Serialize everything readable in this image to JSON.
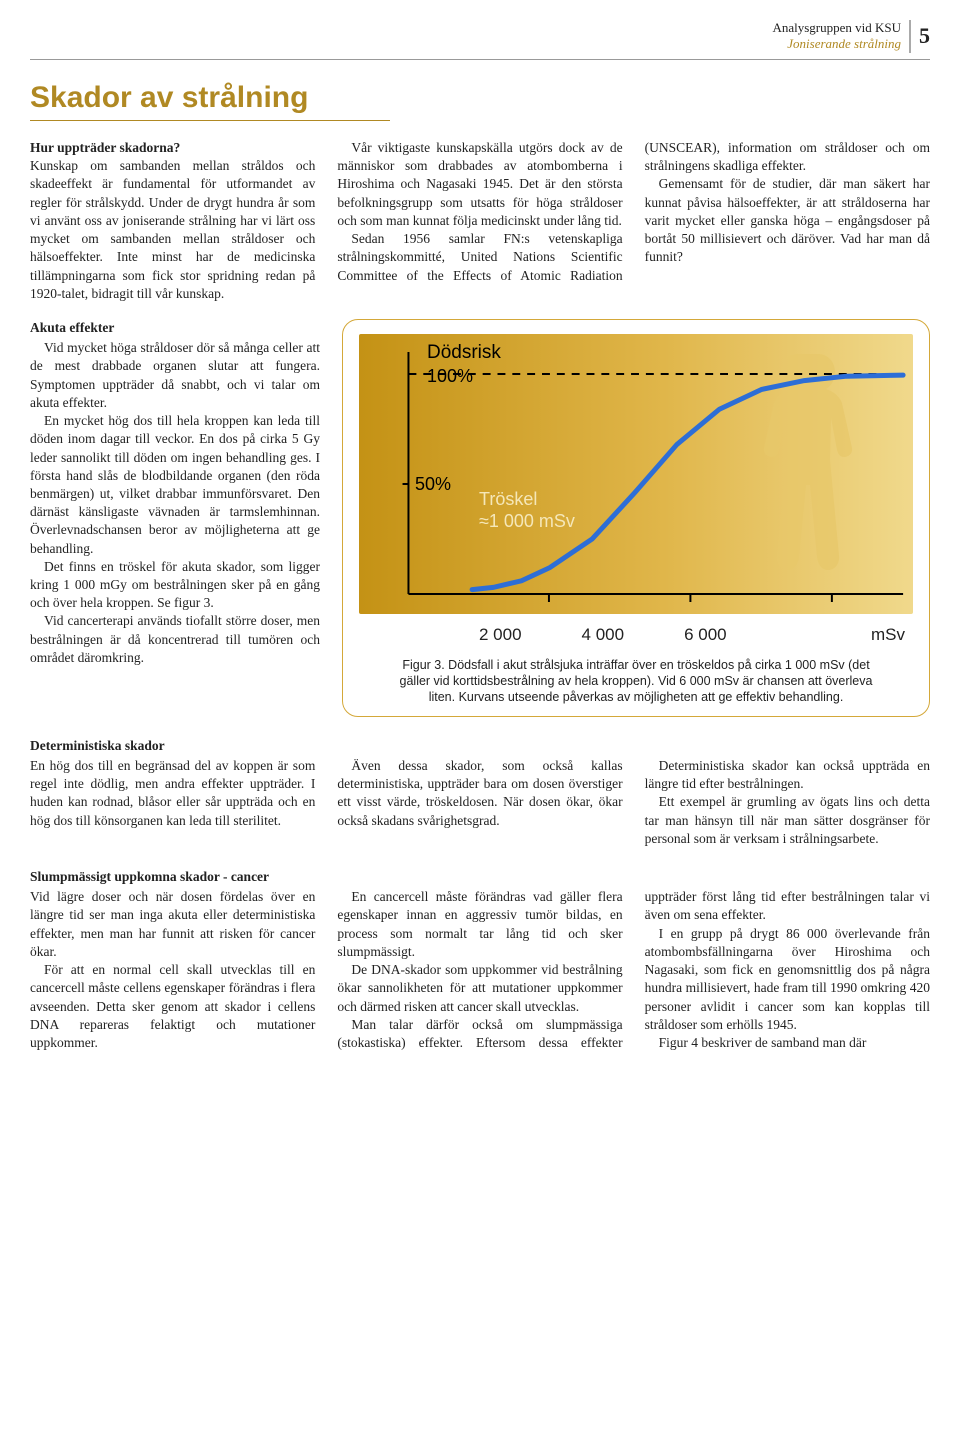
{
  "header": {
    "org": "Analysgruppen vid KSU",
    "topic": "Joniserande strålning",
    "page_number": "5"
  },
  "title": "Skador av strålning",
  "intro": {
    "lead_heading": "Hur uppträder skadorna?",
    "p1": "Kunskap om sambanden mellan stråldos och skadeeffekt är fundamental för utformandet av regler för strålskydd. Under de drygt hundra år som vi använt oss av joniserande strålning har vi lärt oss mycket om sambanden mellan stråldoser och hälsoeffekter. Inte minst har de medicinska tillämpningarna som fick stor spridning redan på 1920-talet, bidragit till vår kunskap.",
    "p2": "Vår viktigaste kunskapskälla utgörs dock av de människor som drabbades av atombomberna i Hiroshima och Nagasaki 1945. Det är den största befolkningsgrupp som utsatts för höga stråldoser och som man kunnat följa medicinskt under lång tid.",
    "p3": "Sedan 1956 samlar FN:s vetenskapliga strålningskommitté, United Nations Scientific Committee of the Effects of Atomic Radiation (UNSCEAR), information om stråldoser och om strålningens skadliga effekter.",
    "p4": "Gemensamt för de studier, där man säkert har kunnat påvisa hälsoeffekter, är att stråldoserna har varit mycket eller ganska höga – engångsdoser på bortåt 50 millisievert och däröver. Vad har man då funnit?"
  },
  "acute": {
    "heading": "Akuta effekter",
    "p1": "Vid mycket höga stråldoser dör så många celler att de mest drabbade organen slutar att fungera. Symptomen uppträder då snabbt, och vi talar om akuta effekter.",
    "p2": "En mycket hög dos till hela kroppen kan leda till döden inom dagar till veckor. En dos på cirka 5 Gy leder sannolikt till döden om ingen behandling ges. I första hand slås de blodbildande organen (den röda benmärgen) ut, vilket drabbar immunförsvaret. Den därnäst känsligaste vävnaden är tarmslemhinnan. Överlevnadschansen beror av möjligheterna att ge behandling.",
    "p3": "Det finns en tröskel för akuta skador, som ligger kring 1 000 mGy om bestrålningen sker på en gång och över hela kroppen. Se figur 3.",
    "p4": "Vid cancerterapi används tiofallt större doser, men bestrålningen är då koncentrerad till tumören och området däromkring."
  },
  "figure3": {
    "type": "line",
    "y_title": "Dödsrisk",
    "y_ticks": [
      "100%",
      "50%"
    ],
    "threshold_label_1": "Tröskel",
    "threshold_label_2": "≈1 000 mSv",
    "x_ticks": [
      "2 000",
      "4 000",
      "6 000"
    ],
    "x_unit": "mSv",
    "xlim": [
      0,
      7000
    ],
    "ylim": [
      0,
      100
    ],
    "curve_points": [
      [
        900,
        2
      ],
      [
        1200,
        3
      ],
      [
        1600,
        6
      ],
      [
        2000,
        12
      ],
      [
        2600,
        25
      ],
      [
        3200,
        46
      ],
      [
        3800,
        68
      ],
      [
        4400,
        84
      ],
      [
        5000,
        93
      ],
      [
        5600,
        97
      ],
      [
        6200,
        99
      ],
      [
        7000,
        99.5
      ]
    ],
    "curve_color": "#2d6ed6",
    "curve_width": 5,
    "dashed_color": "#000000",
    "axis_color": "#000000",
    "background_gradient": [
      "#c49215",
      "#e0b64a",
      "#f0d98c"
    ],
    "silhouette_color": "#e8c86a",
    "threshold_text_color": "#f5e7b8",
    "caption": "Figur 3. Dödsfall i akut strålsjuka inträffar över en tröskeldos på cirka 1 000 mSv (det gäller vid korttidsbestrålning av hela kroppen). Vid 6 000 mSv är chansen att överleva liten. Kurvans utseende påverkas av möjligheten att ge effektiv behandling."
  },
  "deterministic": {
    "heading": "Deterministiska skador",
    "p1": "En hög dos till en begränsad del av koppen är som regel inte dödlig, men andra effekter uppträder. I huden kan rodnad, blåsor eller sår uppträda och en hög dos till könsorganen kan leda till sterilitet.",
    "p2": "Även dessa skador, som också kallas deterministiska, uppträder bara om dosen överstiger ett visst värde, tröskeldosen. När dosen ökar, ökar också skadans svårighetsgrad.",
    "p3": "Deterministiska skador kan också uppträda en längre tid efter bestrålningen.",
    "p4": "Ett exempel är grumling av ögats lins och detta tar man hänsyn till när man sätter dosgränser för personal som är verksam i strålningsarbete."
  },
  "stochastic": {
    "heading": "Slumpmässigt uppkomna skador - cancer",
    "p1": "Vid lägre doser och när dosen fördelas över en längre tid ser man inga akuta eller deterministiska effekter, men man har funnit att risken för cancer ökar.",
    "p2": "För att en normal cell skall utvecklas till en cancercell måste cellens egenskaper förändras i flera avseenden. Detta sker genom att skador i cellens DNA repareras felaktigt och mutationer uppkommer.",
    "p3": "En cancercell måste förändras vad gäller flera egenskaper innan en aggressiv tumör bildas, en process som normalt tar lång tid och sker slumpmässigt.",
    "p4": "De DNA-skador som uppkommer vid bestrålning ökar sannolikheten för att mutationer uppkommer och därmed risken att cancer skall utvecklas.",
    "p5": "Man talar därför också om slumpmässiga (stokastiska) effekter. Eftersom dessa effekter uppträder först lång tid efter bestrålningen talar vi även om sena effekter.",
    "p6": "I en grupp på drygt 86 000 överlevande från atombombsfällningarna över Hiroshima och Nagasaki, som fick en genomsnittlig dos på några hundra millisievert, hade fram till 1990 omkring 420 personer avlidit i cancer som kan kopplas till stråldoser som erhölls 1945.",
    "p7": "Figur 4 beskriver de samband man där"
  }
}
